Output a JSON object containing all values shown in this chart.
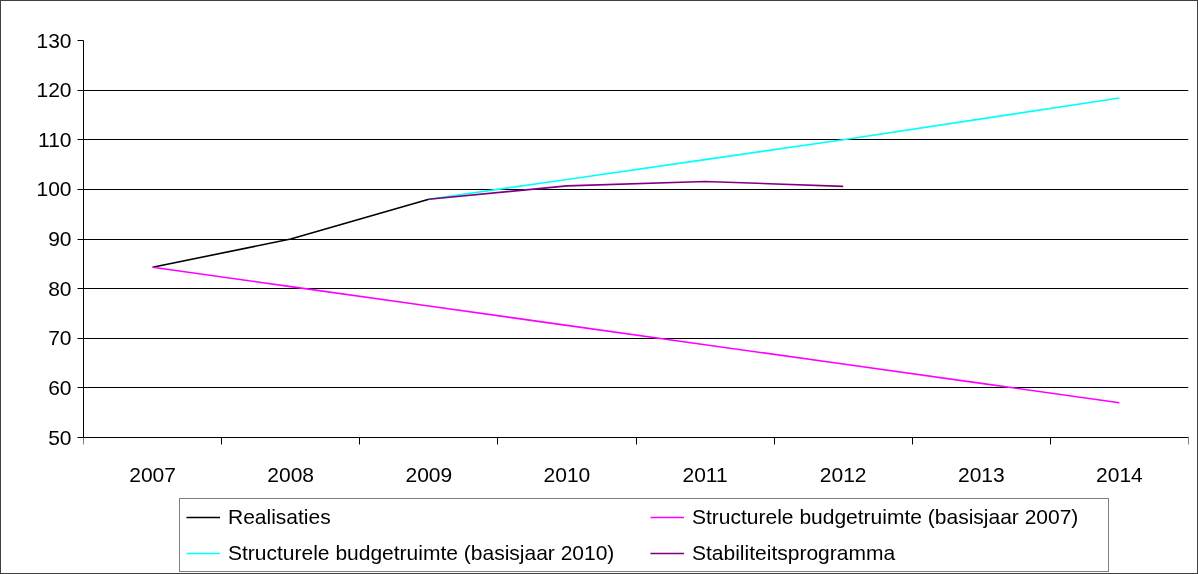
{
  "chart_data": {
    "type": "line",
    "categories": [
      "2007",
      "2008",
      "2009",
      "2010",
      "2011",
      "2012",
      "2013",
      "2014"
    ],
    "series": [
      {
        "name": "Realisaties",
        "color": "#000000",
        "values": [
          84.3,
          90.0,
          98.0,
          null,
          null,
          null,
          null,
          null
        ]
      },
      {
        "name": "Structurele budgetruimte (basisjaar 2007)",
        "color": "#ff00ff",
        "values": [
          84.3,
          80.4,
          76.5,
          72.6,
          68.7,
          64.8,
          60.9,
          57.0
        ]
      },
      {
        "name": "Structurele budgetruimte (basisjaar 2010)",
        "color": "#00ffff",
        "values": [
          null,
          null,
          98.0,
          102.0,
          106.0,
          110.0,
          114.2,
          118.4
        ]
      },
      {
        "name": "Stabiliteitsprogramma",
        "color": "#800080",
        "values": [
          null,
          null,
          98.0,
          100.7,
          101.6,
          100.6,
          null,
          null
        ]
      }
    ],
    "ylim": [
      50,
      130
    ],
    "yticks": [
      50,
      60,
      70,
      80,
      90,
      100,
      110,
      120,
      130
    ],
    "grid": "y",
    "legend": "bottom"
  }
}
